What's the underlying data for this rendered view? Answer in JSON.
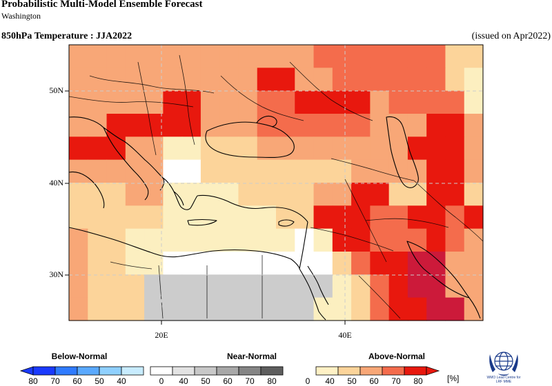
{
  "header": {
    "title": "Probabilistic Multi-Model Ensemble Forecast",
    "subtitle": "Washington",
    "variable": "850hPa Temperature : JJA2022",
    "issued": "(issued on Apr2022)"
  },
  "map": {
    "lat_labels": [
      "50N",
      "40N",
      "30N"
    ],
    "lon_labels": [
      "20E",
      "40E"
    ],
    "colors": {
      "N": "#ffffff",
      "G": "#cccccc",
      "Y": "#fcefc0",
      "L": "#fcd49a",
      "O": "#f8a777",
      "R": "#f46c4c",
      "D": "#e8180e",
      "K": "#cc1a3a"
    },
    "categories": {
      "N": "Near-Normal white",
      "G": "Near-Normal 40-50",
      "Y": "Above-Normal 40",
      "L": "Above-Normal 50",
      "O": "Above-Normal 60",
      "R": "Above-Normal 70",
      "D": "Above-Normal 80"
    }
  },
  "legend": {
    "below_label": "Below-Normal",
    "near_label": "Near-Normal",
    "above_label": "Above-Normal",
    "below_colors": [
      "#1a3aff",
      "#2f7bff",
      "#5aa9ff",
      "#8fd0ff",
      "#c8ecff"
    ],
    "below_ticks": [
      "80",
      "70",
      "60",
      "50",
      "40"
    ],
    "near_colors": [
      "#ffffff",
      "#e3e3e3",
      "#c8c8c8",
      "#a8a8a8",
      "#858585",
      "#5e5e5e"
    ],
    "near_ticks": [
      "0",
      "40",
      "50",
      "60",
      "70",
      "80"
    ],
    "above_colors": [
      "#fff1c5",
      "#fcd49a",
      "#f8a777",
      "#f46c4c",
      "#e8180e"
    ],
    "above_ticks": [
      "0",
      "40",
      "50",
      "60",
      "70",
      "80"
    ],
    "unit": "[%]"
  },
  "logo": {
    "org_line1": "WMO Lead Centre for",
    "org_line2": "LRF MME"
  }
}
